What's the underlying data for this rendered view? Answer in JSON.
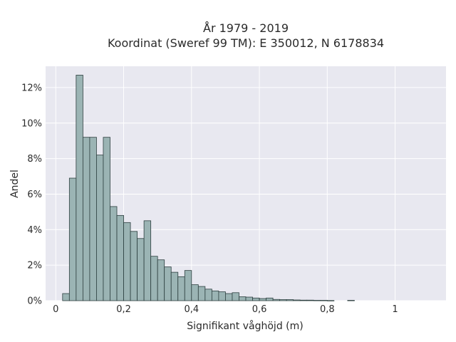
{
  "chart_data": {
    "type": "bar",
    "title_lines": [
      "År 1979 - 2019",
      "Koordinat (Sweref 99 TM): E 350012, N 6178834"
    ],
    "xlabel": "Signifikant våghöjd (m)",
    "ylabel": "Andel",
    "xlim": [
      -0.03,
      1.15
    ],
    "ylim": [
      0,
      13.2
    ],
    "x_ticks": [
      {
        "value": 0,
        "label": "0"
      },
      {
        "value": 0.2,
        "label": "0,2"
      },
      {
        "value": 0.4,
        "label": "0,4"
      },
      {
        "value": 0.6,
        "label": "0,6"
      },
      {
        "value": 0.8,
        "label": "0,8"
      },
      {
        "value": 1.0,
        "label": "1"
      }
    ],
    "y_ticks": [
      {
        "value": 0,
        "label": "0%"
      },
      {
        "value": 2,
        "label": "2%"
      },
      {
        "value": 4,
        "label": "4%"
      },
      {
        "value": 6,
        "label": "6%"
      },
      {
        "value": 8,
        "label": "8%"
      },
      {
        "value": 10,
        "label": "10%"
      },
      {
        "value": 12,
        "label": "12%"
      }
    ],
    "bin_start": 0.02,
    "bin_width": 0.02,
    "values": [
      0.4,
      6.9,
      12.7,
      9.2,
      9.2,
      8.2,
      9.2,
      5.3,
      4.8,
      4.4,
      3.9,
      3.5,
      4.5,
      2.5,
      2.3,
      1.9,
      1.6,
      1.35,
      1.7,
      0.9,
      0.8,
      0.65,
      0.55,
      0.5,
      0.4,
      0.45,
      0.22,
      0.2,
      0.15,
      0.12,
      0.15,
      0.07,
      0.06,
      0.06,
      0.04,
      0.03,
      0.03,
      0.02,
      0.02,
      0.01,
      0.0,
      0.0,
      0.02
    ],
    "grid": true,
    "colors": {
      "plot_bg": "#e8e8f0",
      "grid": "#ffffff",
      "bar_fill": "#9bb4b4",
      "bar_stroke": "#2d3f3f"
    }
  }
}
